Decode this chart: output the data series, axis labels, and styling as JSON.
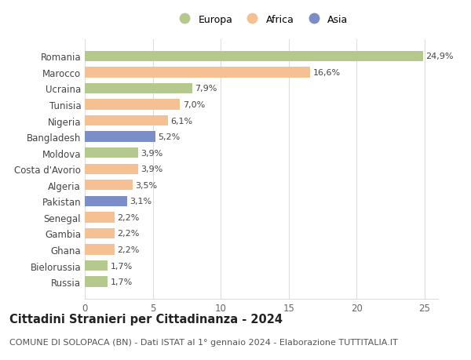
{
  "categories": [
    "Romania",
    "Marocco",
    "Ucraina",
    "Tunisia",
    "Nigeria",
    "Bangladesh",
    "Moldova",
    "Costa d'Avorio",
    "Algeria",
    "Pakistan",
    "Senegal",
    "Gambia",
    "Ghana",
    "Bielorussia",
    "Russia"
  ],
  "values": [
    24.9,
    16.6,
    7.9,
    7.0,
    6.1,
    5.2,
    3.9,
    3.9,
    3.5,
    3.1,
    2.2,
    2.2,
    2.2,
    1.7,
    1.7
  ],
  "labels": [
    "24,9%",
    "16,6%",
    "7,9%",
    "7,0%",
    "6,1%",
    "5,2%",
    "3,9%",
    "3,9%",
    "3,5%",
    "3,1%",
    "2,2%",
    "2,2%",
    "2,2%",
    "1,7%",
    "1,7%"
  ],
  "colors": [
    "#b5c98e",
    "#f5c193",
    "#b5c98e",
    "#f5c193",
    "#f5c193",
    "#7b8ec8",
    "#b5c98e",
    "#f5c193",
    "#f5c193",
    "#7b8ec8",
    "#f5c193",
    "#f5c193",
    "#f5c193",
    "#b5c98e",
    "#b5c98e"
  ],
  "legend_labels": [
    "Europa",
    "Africa",
    "Asia"
  ],
  "legend_colors": [
    "#b5c98e",
    "#f5c193",
    "#7b8ec8"
  ],
  "title": "Cittadini Stranieri per Cittadinanza - 2024",
  "subtitle": "COMUNE DI SOLOPACA (BN) - Dati ISTAT al 1° gennaio 2024 - Elaborazione TUTTITALIA.IT",
  "xlim": [
    0,
    26
  ],
  "xticks": [
    0,
    5,
    10,
    15,
    20,
    25
  ],
  "background_color": "#ffffff",
  "grid_color": "#dddddd",
  "bar_height": 0.65,
  "label_fontsize": 8.0,
  "ytick_fontsize": 8.5,
  "xtick_fontsize": 8.5,
  "title_fontsize": 10.5,
  "subtitle_fontsize": 8.0
}
